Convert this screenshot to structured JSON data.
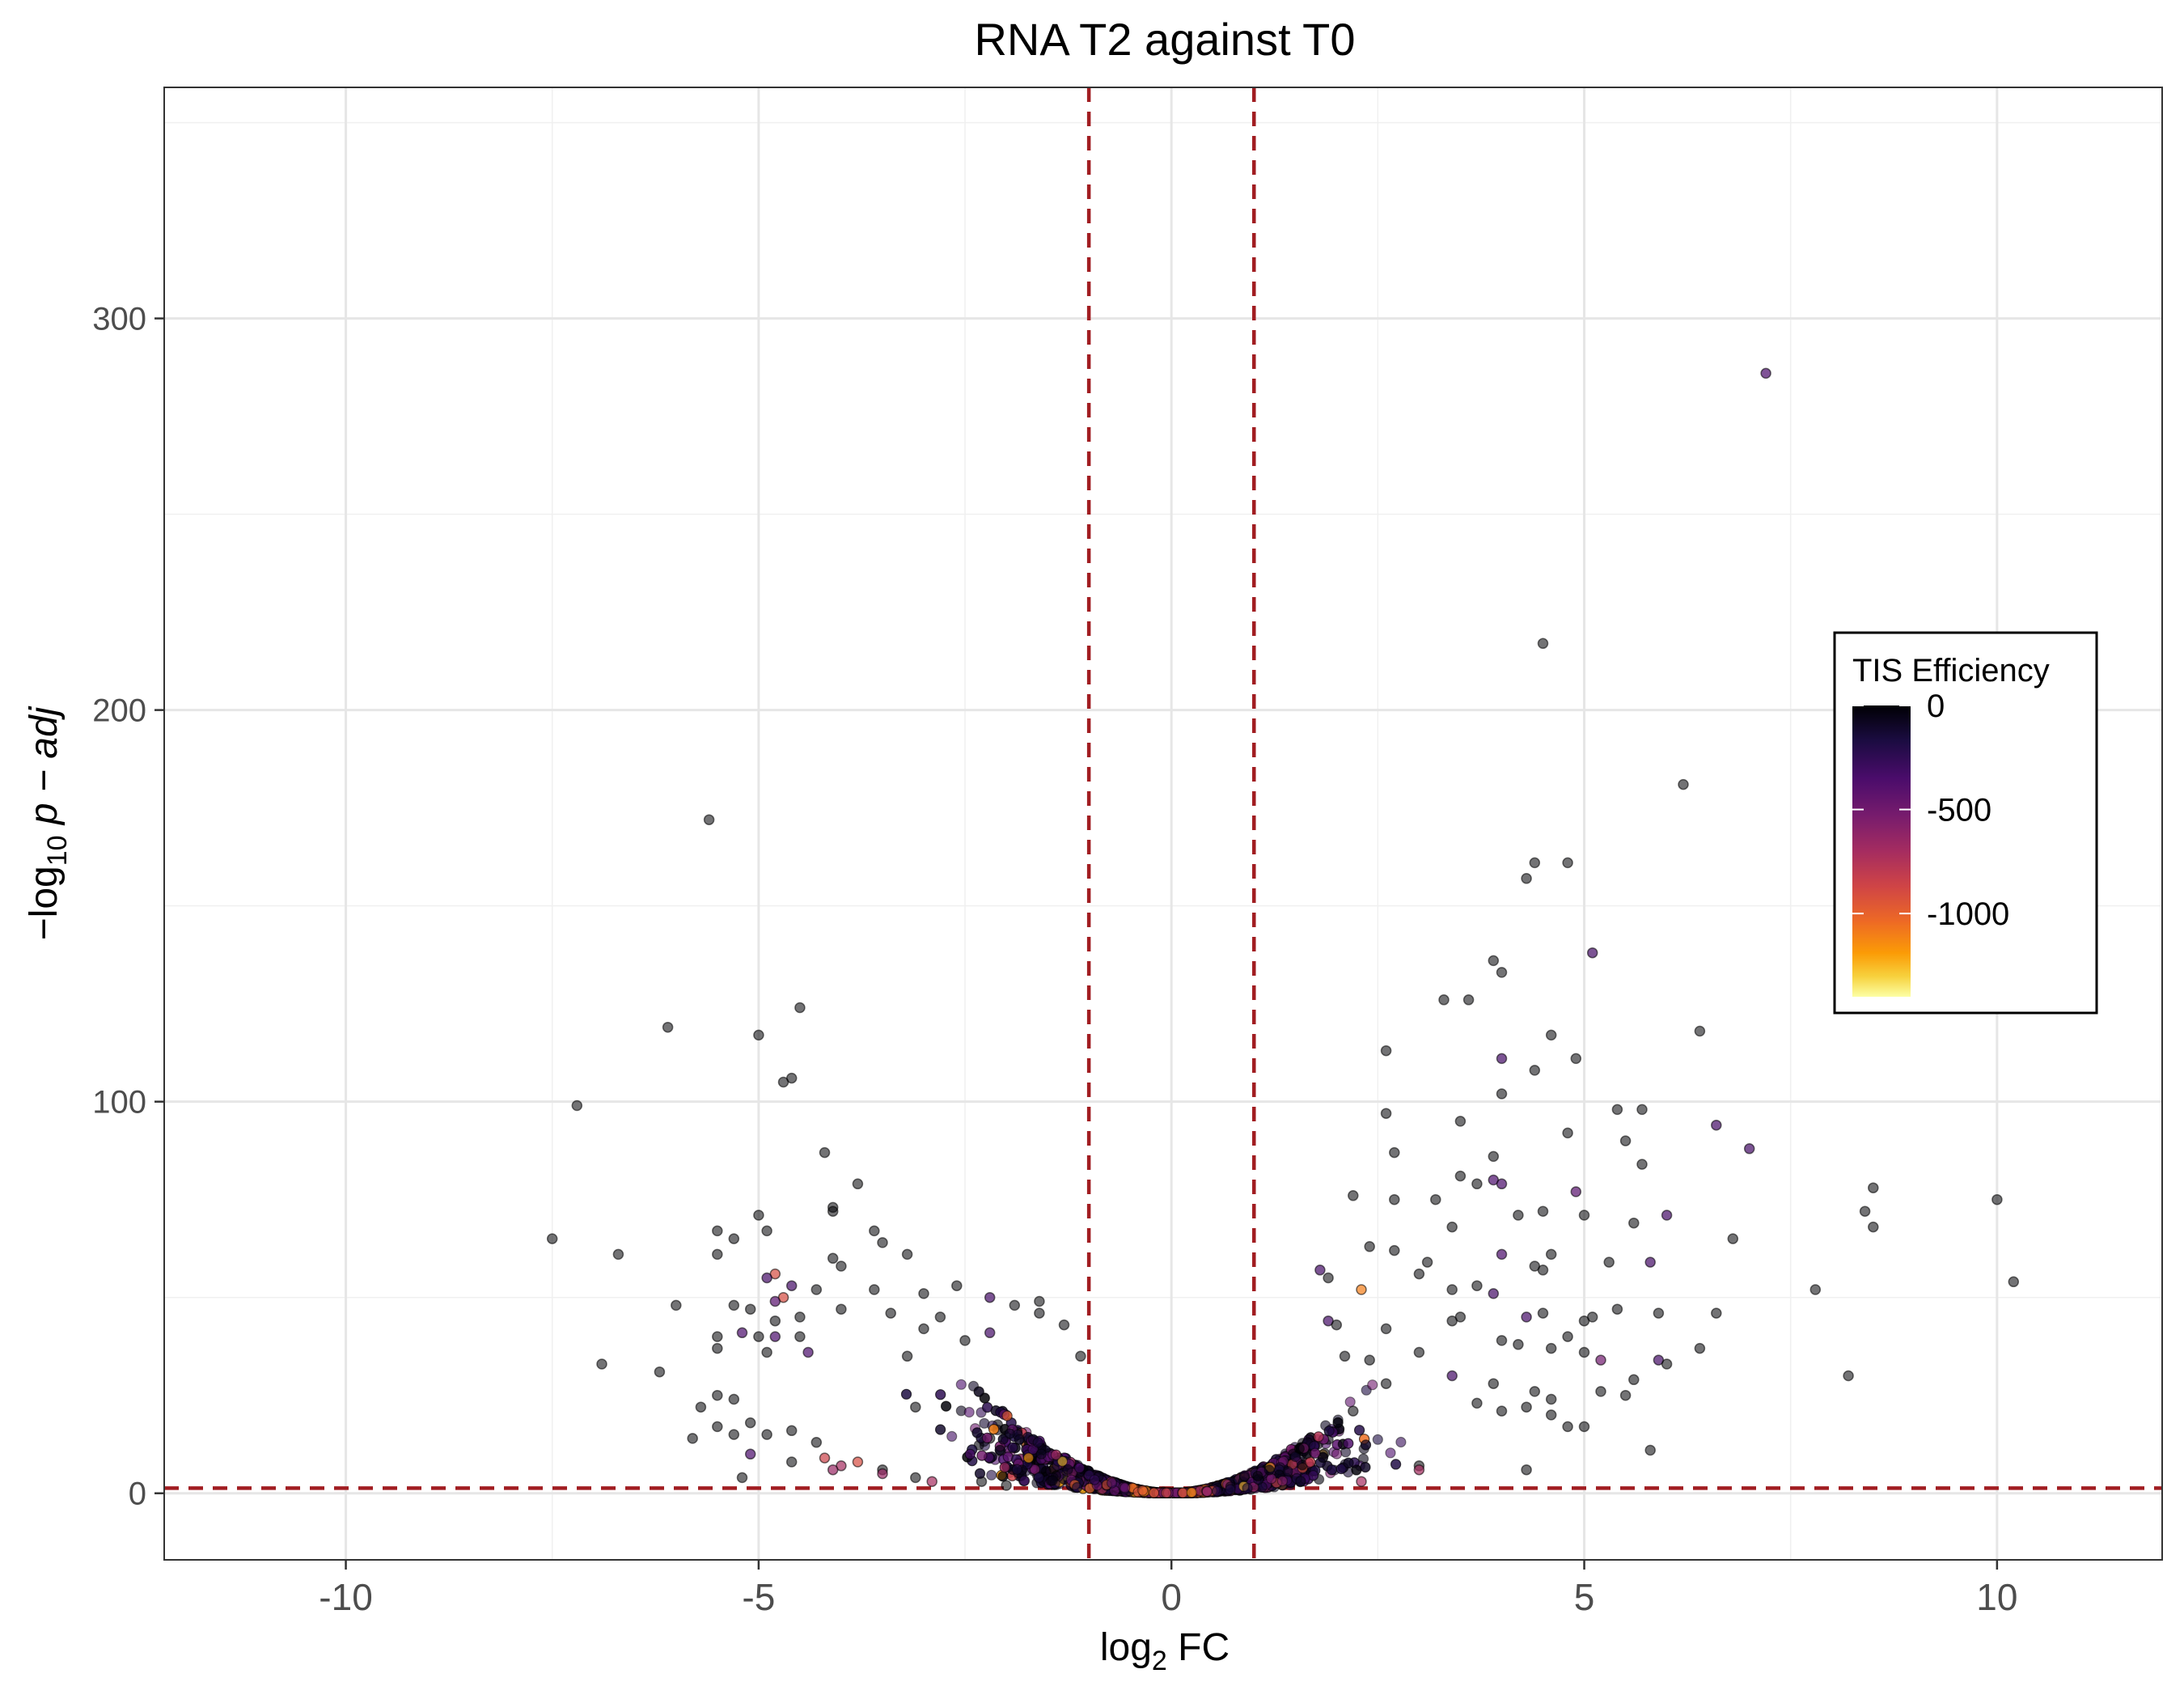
{
  "chart_data": {
    "type": "scatter",
    "title": "RNA T2 against T0",
    "xlabel": {
      "prefix": "log",
      "sub": "2",
      "suffix": " FC"
    },
    "ylabel": {
      "prefix": "−log",
      "sub": "10",
      "suffix": " p − adj"
    },
    "xlim": [
      -12.2,
      12.0
    ],
    "ylim": [
      -17,
      359
    ],
    "x_ticks": [
      -10,
      -5,
      0,
      5,
      10
    ],
    "x_tick_labels": [
      "-10",
      "-5",
      "0",
      "5",
      "10"
    ],
    "y_ticks": [
      0,
      100,
      200,
      300
    ],
    "y_tick_labels": [
      "0",
      "100",
      "200",
      "300"
    ],
    "grid": true,
    "thresholds": {
      "x": [
        -1,
        1
      ],
      "y": 1.3,
      "color": "#a11d21",
      "style": "dashed"
    },
    "legend": {
      "title": "TIS Efficiency",
      "position": "right",
      "ticks": [
        0,
        -500,
        -1000
      ],
      "tick_labels": [
        "0",
        "-500",
        "-1000"
      ],
      "range": [
        -1400,
        0
      ],
      "palette": "inferno"
    },
    "points": [
      [
        7.2,
        286,
        -350
      ],
      [
        4.5,
        217,
        0
      ],
      [
        6.2,
        181,
        0
      ],
      [
        -5.6,
        172,
        0
      ],
      [
        4.4,
        161,
        0
      ],
      [
        4.8,
        161,
        0
      ],
      [
        4.3,
        157,
        0
      ],
      [
        5.1,
        138,
        -330
      ],
      [
        3.9,
        136,
        0
      ],
      [
        4.0,
        133,
        0
      ],
      [
        3.3,
        126,
        0
      ],
      [
        3.6,
        126,
        0
      ],
      [
        -4.5,
        124,
        0
      ],
      [
        -6.1,
        119,
        0
      ],
      [
        6.4,
        118,
        0
      ],
      [
        -5.0,
        117,
        0
      ],
      [
        4.6,
        117,
        0
      ],
      [
        2.6,
        113,
        0
      ],
      [
        4.0,
        111,
        -330
      ],
      [
        4.9,
        111,
        0
      ],
      [
        4.4,
        108,
        0
      ],
      [
        -4.6,
        106,
        0
      ],
      [
        -4.7,
        105,
        0
      ],
      [
        4.0,
        102,
        0
      ],
      [
        -7.2,
        99,
        0
      ],
      [
        5.4,
        98,
        0
      ],
      [
        5.7,
        98,
        0
      ],
      [
        2.6,
        97,
        0
      ],
      [
        3.5,
        95,
        0
      ],
      [
        6.6,
        94,
        -330
      ],
      [
        4.8,
        92,
        0
      ],
      [
        5.5,
        90,
        0
      ],
      [
        7.0,
        88,
        -330
      ],
      [
        -4.2,
        87,
        0
      ],
      [
        3.9,
        86,
        0
      ],
      [
        2.7,
        87,
        0
      ],
      [
        5.7,
        84,
        0
      ],
      [
        3.5,
        81,
        0
      ],
      [
        3.9,
        80,
        -350
      ],
      [
        4.0,
        79,
        -350
      ],
      [
        3.7,
        79,
        0
      ],
      [
        -3.8,
        79,
        0
      ],
      [
        2.2,
        76,
        0
      ],
      [
        3.2,
        75,
        0
      ],
      [
        2.7,
        75,
        0
      ],
      [
        10.0,
        75,
        0
      ],
      [
        8.5,
        78,
        0
      ],
      [
        4.9,
        77,
        -400
      ],
      [
        8.4,
        72,
        0
      ],
      [
        -4.1,
        73,
        0
      ],
      [
        -4.1,
        72,
        0
      ],
      [
        4.5,
        72,
        0
      ],
      [
        4.2,
        71,
        0
      ],
      [
        5.0,
        71,
        0
      ],
      [
        6.0,
        71,
        -330
      ],
      [
        -5.0,
        71,
        0
      ],
      [
        5.6,
        69,
        0
      ],
      [
        -4.9,
        67,
        0
      ],
      [
        -7.5,
        65,
        0
      ],
      [
        8.5,
        68,
        0
      ],
      [
        3.4,
        68,
        0
      ],
      [
        -3.6,
        67,
        0
      ],
      [
        -5.5,
        67,
        0
      ],
      [
        6.8,
        65,
        0
      ],
      [
        -5.3,
        65,
        0
      ],
      [
        -3.5,
        64,
        0
      ],
      [
        2.4,
        63,
        0
      ],
      [
        2.7,
        62,
        0
      ],
      [
        4.6,
        61,
        0
      ],
      [
        -6.7,
        61,
        0
      ],
      [
        -5.5,
        61,
        0
      ],
      [
        3.1,
        59,
        0
      ],
      [
        4.0,
        61,
        -350
      ],
      [
        5.3,
        59,
        0
      ],
      [
        4.4,
        58,
        0
      ],
      [
        -3.2,
        61,
        0
      ],
      [
        -4.1,
        60,
        0
      ],
      [
        5.8,
        59,
        -330
      ],
      [
        -4.0,
        58,
        0
      ],
      [
        4.5,
        57,
        0
      ],
      [
        -4.8,
        56,
        -900
      ],
      [
        1.8,
        57,
        -330
      ],
      [
        3.0,
        56,
        0
      ],
      [
        1.9,
        55,
        0
      ],
      [
        -4.9,
        55,
        -330
      ],
      [
        10.2,
        54,
        0
      ],
      [
        3.7,
        53,
        0
      ],
      [
        2.3,
        52,
        -1100
      ],
      [
        3.4,
        52,
        0
      ],
      [
        -4.6,
        53,
        -330
      ],
      [
        7.8,
        52,
        0
      ],
      [
        -2.6,
        53,
        0
      ],
      [
        -3.6,
        52,
        0
      ],
      [
        -4.3,
        52,
        0
      ],
      [
        -3.0,
        51,
        0
      ],
      [
        3.9,
        51,
        -330
      ],
      [
        5.0,
        44,
        0
      ],
      [
        5.1,
        45,
        0
      ],
      [
        5.9,
        46,
        0
      ],
      [
        6.6,
        46,
        0
      ],
      [
        -4.7,
        50,
        -900
      ],
      [
        -4.8,
        49,
        -400
      ],
      [
        -2.2,
        50,
        -330
      ],
      [
        -1.6,
        49,
        0
      ],
      [
        -1.9,
        48,
        0
      ],
      [
        -6.0,
        48,
        0
      ],
      [
        -5.3,
        48,
        0
      ],
      [
        -4.0,
        47,
        0
      ],
      [
        -5.1,
        47,
        0
      ],
      [
        -3.4,
        46,
        0
      ],
      [
        4.5,
        46,
        0
      ],
      [
        -1.6,
        46,
        0
      ],
      [
        3.5,
        45,
        0
      ],
      [
        5.4,
        47,
        0
      ],
      [
        4.3,
        45,
        -330
      ],
      [
        -4.5,
        45,
        0
      ],
      [
        -2.8,
        45,
        0
      ],
      [
        -4.8,
        44,
        0
      ],
      [
        1.9,
        44,
        -330
      ],
      [
        3.4,
        44,
        0
      ],
      [
        -1.3,
        43,
        0
      ],
      [
        2.0,
        43,
        0
      ],
      [
        2.6,
        42,
        0
      ],
      [
        -3.0,
        42,
        0
      ],
      [
        -2.2,
        41,
        -330
      ],
      [
        -5.2,
        41,
        -350
      ],
      [
        -4.8,
        40,
        -350
      ],
      [
        -4.5,
        40,
        0
      ],
      [
        4.8,
        40,
        0
      ],
      [
        -5.5,
        40,
        0
      ],
      [
        -5.0,
        40,
        0
      ],
      [
        -2.5,
        39,
        0
      ],
      [
        4.0,
        39,
        0
      ],
      [
        4.2,
        38,
        0
      ],
      [
        4.6,
        37,
        0
      ],
      [
        6.4,
        37,
        0
      ],
      [
        5.0,
        36,
        0
      ],
      [
        -5.5,
        37,
        0
      ],
      [
        -4.9,
        36,
        0
      ],
      [
        -4.4,
        36,
        -350
      ],
      [
        3.0,
        36,
        0
      ],
      [
        -3.2,
        35,
        0
      ],
      [
        -1.1,
        35,
        0
      ],
      [
        2.1,
        35,
        0
      ],
      [
        2.4,
        34,
        0
      ],
      [
        5.2,
        34,
        -500
      ],
      [
        5.9,
        34,
        -330
      ],
      [
        6.0,
        33,
        0
      ],
      [
        -6.9,
        33,
        0
      ],
      [
        -6.2,
        31,
        0
      ],
      [
        8.2,
        30,
        0
      ],
      [
        3.4,
        30,
        -330
      ],
      [
        5.6,
        29,
        0
      ],
      [
        3.9,
        28,
        0
      ],
      [
        2.6,
        28,
        0
      ],
      [
        4.4,
        26,
        0
      ],
      [
        5.2,
        26,
        0
      ],
      [
        5.5,
        25,
        0
      ],
      [
        -5.5,
        25,
        0
      ],
      [
        -5.7,
        22,
        0
      ],
      [
        -5.3,
        24,
        0
      ],
      [
        4.6,
        24,
        0
      ],
      [
        3.7,
        23,
        0
      ],
      [
        -3.1,
        22,
        0
      ],
      [
        4.0,
        21,
        0
      ],
      [
        4.3,
        22,
        0
      ],
      [
        2.2,
        21,
        0
      ],
      [
        4.6,
        20,
        0
      ],
      [
        -5.1,
        18,
        0
      ],
      [
        -5.5,
        17,
        0
      ],
      [
        -5.3,
        15,
        0
      ],
      [
        -5.8,
        14,
        0
      ],
      [
        -4.9,
        15,
        0
      ],
      [
        4.8,
        17,
        0
      ],
      [
        5.0,
        17,
        0
      ],
      [
        -4.6,
        16,
        0
      ],
      [
        -2.2,
        14,
        0
      ],
      [
        -4.3,
        13,
        0
      ],
      [
        5.8,
        11,
        0
      ],
      [
        -5.1,
        10,
        -350
      ],
      [
        -4.6,
        8,
        0
      ],
      [
        3.0,
        7,
        0
      ],
      [
        4.3,
        6,
        0
      ],
      [
        -5.2,
        4,
        0
      ],
      [
        -3.5,
        6,
        0
      ],
      [
        -3.1,
        4,
        0
      ],
      [
        -2.3,
        3,
        0
      ],
      [
        -2.0,
        2,
        0
      ],
      [
        -0.3,
        0.5,
        -1350
      ],
      [
        0.7,
        0.8,
        -1300
      ],
      [
        -0.7,
        1.0,
        -1000
      ],
      [
        -0.1,
        0.3,
        -1250
      ],
      [
        0.4,
        0.6,
        -1100
      ],
      [
        -0.5,
        0.7,
        -950
      ],
      [
        0.8,
        1.2,
        -900
      ],
      [
        -3.8,
        8,
        -900
      ],
      [
        -4.2,
        9,
        -850
      ],
      [
        -4.0,
        7,
        -700
      ],
      [
        -3.5,
        5,
        -650
      ],
      [
        -2.9,
        3,
        -700
      ],
      [
        -1.3,
        4,
        -800
      ],
      [
        -1.0,
        3,
        -600
      ],
      [
        2.3,
        3,
        -700
      ],
      [
        3.0,
        6,
        -700
      ],
      [
        -4.1,
        6,
        -650
      ]
    ]
  }
}
